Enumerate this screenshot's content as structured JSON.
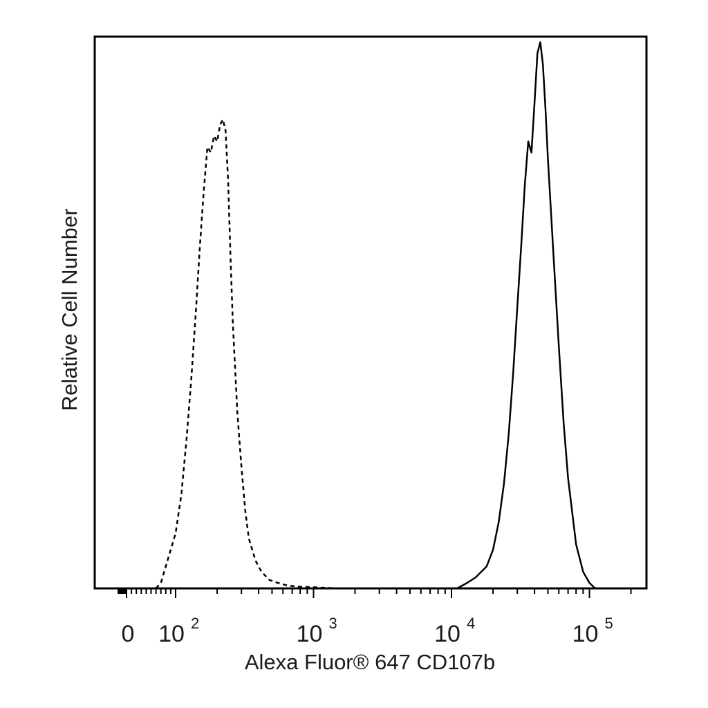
{
  "chart_data": {
    "type": "histogram",
    "xlabel": "Alexa Fluor® 647 CD107b",
    "ylabel": "Relative Cell Number",
    "x_scale": "biexponential (linear around 0, log above ~10^2)",
    "xlim": [
      -100,
      250000
    ],
    "ylim": [
      0,
      100
    ],
    "grid": false,
    "legend": "none",
    "x_tick_labels": [
      {
        "value": 0,
        "base": "0",
        "exp": ""
      },
      {
        "value": 100,
        "base": "10",
        "exp": "2"
      },
      {
        "value": 1000,
        "base": "10",
        "exp": "3"
      },
      {
        "value": 10000,
        "base": "10",
        "exp": "4"
      },
      {
        "value": 100000,
        "base": "10",
        "exp": "5"
      }
    ],
    "series": [
      {
        "style": "dashed",
        "color": "#000000",
        "x": [
          60,
          70,
          80,
          90,
          100,
          110,
          120,
          130,
          140,
          150,
          160,
          170,
          180,
          190,
          200,
          210,
          220,
          230,
          240,
          250,
          260,
          280,
          300,
          320,
          340,
          380,
          420,
          480,
          550,
          650,
          800,
          1000,
          1200,
          1500
        ],
        "y": [
          0,
          1,
          4,
          7,
          10,
          17,
          27,
          38,
          50,
          62,
          72,
          80,
          79,
          82,
          81,
          84,
          85,
          83,
          74,
          60,
          48,
          32,
          22,
          14,
          9,
          5,
          3,
          1.5,
          1,
          0.5,
          0.3,
          0.2,
          0.1,
          0
        ]
      },
      {
        "style": "solid",
        "color": "#000000",
        "x": [
          11000,
          13000,
          15000,
          18000,
          20000,
          22000,
          24000,
          26000,
          28000,
          30000,
          32000,
          34000,
          36000,
          38000,
          40000,
          42000,
          44000,
          46000,
          48000,
          50000,
          55000,
          60000,
          65000,
          70000,
          80000,
          90000,
          100000,
          110000
        ],
        "y": [
          0,
          1,
          2,
          4,
          7,
          12,
          19,
          28,
          39,
          51,
          62,
          73,
          81,
          79,
          88,
          97,
          99,
          95,
          87,
          78,
          60,
          44,
          30,
          20,
          8,
          3,
          1,
          0
        ]
      }
    ]
  }
}
